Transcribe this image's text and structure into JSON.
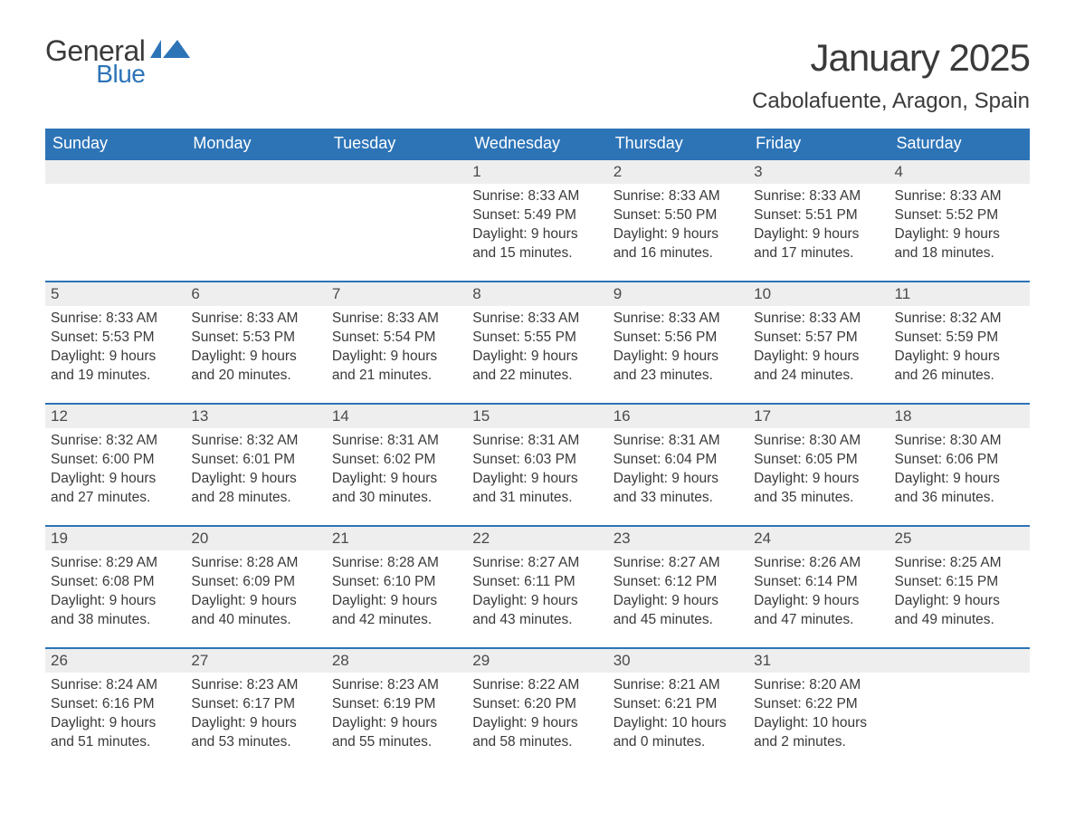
{
  "logo": {
    "word1": "General",
    "word2": "Blue"
  },
  "header": {
    "month_title": "January 2025",
    "location": "Cabolafuente, Aragon, Spain"
  },
  "colors": {
    "header_bg": "#2d74b7",
    "header_text": "#ffffff",
    "daynum_bg": "#eeeeee",
    "row_top_border": "#2d74b7",
    "body_text": "#3a3a3a",
    "logo_blue": "#2d74b7"
  },
  "day_headers": [
    "Sunday",
    "Monday",
    "Tuesday",
    "Wednesday",
    "Thursday",
    "Friday",
    "Saturday"
  ],
  "labels": {
    "sunrise": "Sunrise:",
    "sunset": "Sunset:",
    "daylight": "Daylight:"
  },
  "weeks": [
    [
      {
        "blank": true
      },
      {
        "blank": true
      },
      {
        "blank": true
      },
      {
        "day": "1",
        "sunrise": "8:33 AM",
        "sunset": "5:49 PM",
        "daylight1": "9 hours",
        "daylight2": "and 15 minutes."
      },
      {
        "day": "2",
        "sunrise": "8:33 AM",
        "sunset": "5:50 PM",
        "daylight1": "9 hours",
        "daylight2": "and 16 minutes."
      },
      {
        "day": "3",
        "sunrise": "8:33 AM",
        "sunset": "5:51 PM",
        "daylight1": "9 hours",
        "daylight2": "and 17 minutes."
      },
      {
        "day": "4",
        "sunrise": "8:33 AM",
        "sunset": "5:52 PM",
        "daylight1": "9 hours",
        "daylight2": "and 18 minutes."
      }
    ],
    [
      {
        "day": "5",
        "sunrise": "8:33 AM",
        "sunset": "5:53 PM",
        "daylight1": "9 hours",
        "daylight2": "and 19 minutes."
      },
      {
        "day": "6",
        "sunrise": "8:33 AM",
        "sunset": "5:53 PM",
        "daylight1": "9 hours",
        "daylight2": "and 20 minutes."
      },
      {
        "day": "7",
        "sunrise": "8:33 AM",
        "sunset": "5:54 PM",
        "daylight1": "9 hours",
        "daylight2": "and 21 minutes."
      },
      {
        "day": "8",
        "sunrise": "8:33 AM",
        "sunset": "5:55 PM",
        "daylight1": "9 hours",
        "daylight2": "and 22 minutes."
      },
      {
        "day": "9",
        "sunrise": "8:33 AM",
        "sunset": "5:56 PM",
        "daylight1": "9 hours",
        "daylight2": "and 23 minutes."
      },
      {
        "day": "10",
        "sunrise": "8:33 AM",
        "sunset": "5:57 PM",
        "daylight1": "9 hours",
        "daylight2": "and 24 minutes."
      },
      {
        "day": "11",
        "sunrise": "8:32 AM",
        "sunset": "5:59 PM",
        "daylight1": "9 hours",
        "daylight2": "and 26 minutes."
      }
    ],
    [
      {
        "day": "12",
        "sunrise": "8:32 AM",
        "sunset": "6:00 PM",
        "daylight1": "9 hours",
        "daylight2": "and 27 minutes."
      },
      {
        "day": "13",
        "sunrise": "8:32 AM",
        "sunset": "6:01 PM",
        "daylight1": "9 hours",
        "daylight2": "and 28 minutes."
      },
      {
        "day": "14",
        "sunrise": "8:31 AM",
        "sunset": "6:02 PM",
        "daylight1": "9 hours",
        "daylight2": "and 30 minutes."
      },
      {
        "day": "15",
        "sunrise": "8:31 AM",
        "sunset": "6:03 PM",
        "daylight1": "9 hours",
        "daylight2": "and 31 minutes."
      },
      {
        "day": "16",
        "sunrise": "8:31 AM",
        "sunset": "6:04 PM",
        "daylight1": "9 hours",
        "daylight2": "and 33 minutes."
      },
      {
        "day": "17",
        "sunrise": "8:30 AM",
        "sunset": "6:05 PM",
        "daylight1": "9 hours",
        "daylight2": "and 35 minutes."
      },
      {
        "day": "18",
        "sunrise": "8:30 AM",
        "sunset": "6:06 PM",
        "daylight1": "9 hours",
        "daylight2": "and 36 minutes."
      }
    ],
    [
      {
        "day": "19",
        "sunrise": "8:29 AM",
        "sunset": "6:08 PM",
        "daylight1": "9 hours",
        "daylight2": "and 38 minutes."
      },
      {
        "day": "20",
        "sunrise": "8:28 AM",
        "sunset": "6:09 PM",
        "daylight1": "9 hours",
        "daylight2": "and 40 minutes."
      },
      {
        "day": "21",
        "sunrise": "8:28 AM",
        "sunset": "6:10 PM",
        "daylight1": "9 hours",
        "daylight2": "and 42 minutes."
      },
      {
        "day": "22",
        "sunrise": "8:27 AM",
        "sunset": "6:11 PM",
        "daylight1": "9 hours",
        "daylight2": "and 43 minutes."
      },
      {
        "day": "23",
        "sunrise": "8:27 AM",
        "sunset": "6:12 PM",
        "daylight1": "9 hours",
        "daylight2": "and 45 minutes."
      },
      {
        "day": "24",
        "sunrise": "8:26 AM",
        "sunset": "6:14 PM",
        "daylight1": "9 hours",
        "daylight2": "and 47 minutes."
      },
      {
        "day": "25",
        "sunrise": "8:25 AM",
        "sunset": "6:15 PM",
        "daylight1": "9 hours",
        "daylight2": "and 49 minutes."
      }
    ],
    [
      {
        "day": "26",
        "sunrise": "8:24 AM",
        "sunset": "6:16 PM",
        "daylight1": "9 hours",
        "daylight2": "and 51 minutes."
      },
      {
        "day": "27",
        "sunrise": "8:23 AM",
        "sunset": "6:17 PM",
        "daylight1": "9 hours",
        "daylight2": "and 53 minutes."
      },
      {
        "day": "28",
        "sunrise": "8:23 AM",
        "sunset": "6:19 PM",
        "daylight1": "9 hours",
        "daylight2": "and 55 minutes."
      },
      {
        "day": "29",
        "sunrise": "8:22 AM",
        "sunset": "6:20 PM",
        "daylight1": "9 hours",
        "daylight2": "and 58 minutes."
      },
      {
        "day": "30",
        "sunrise": "8:21 AM",
        "sunset": "6:21 PM",
        "daylight1": "10 hours",
        "daylight2": "and 0 minutes."
      },
      {
        "day": "31",
        "sunrise": "8:20 AM",
        "sunset": "6:22 PM",
        "daylight1": "10 hours",
        "daylight2": "and 2 minutes."
      },
      {
        "blank": true
      }
    ]
  ]
}
